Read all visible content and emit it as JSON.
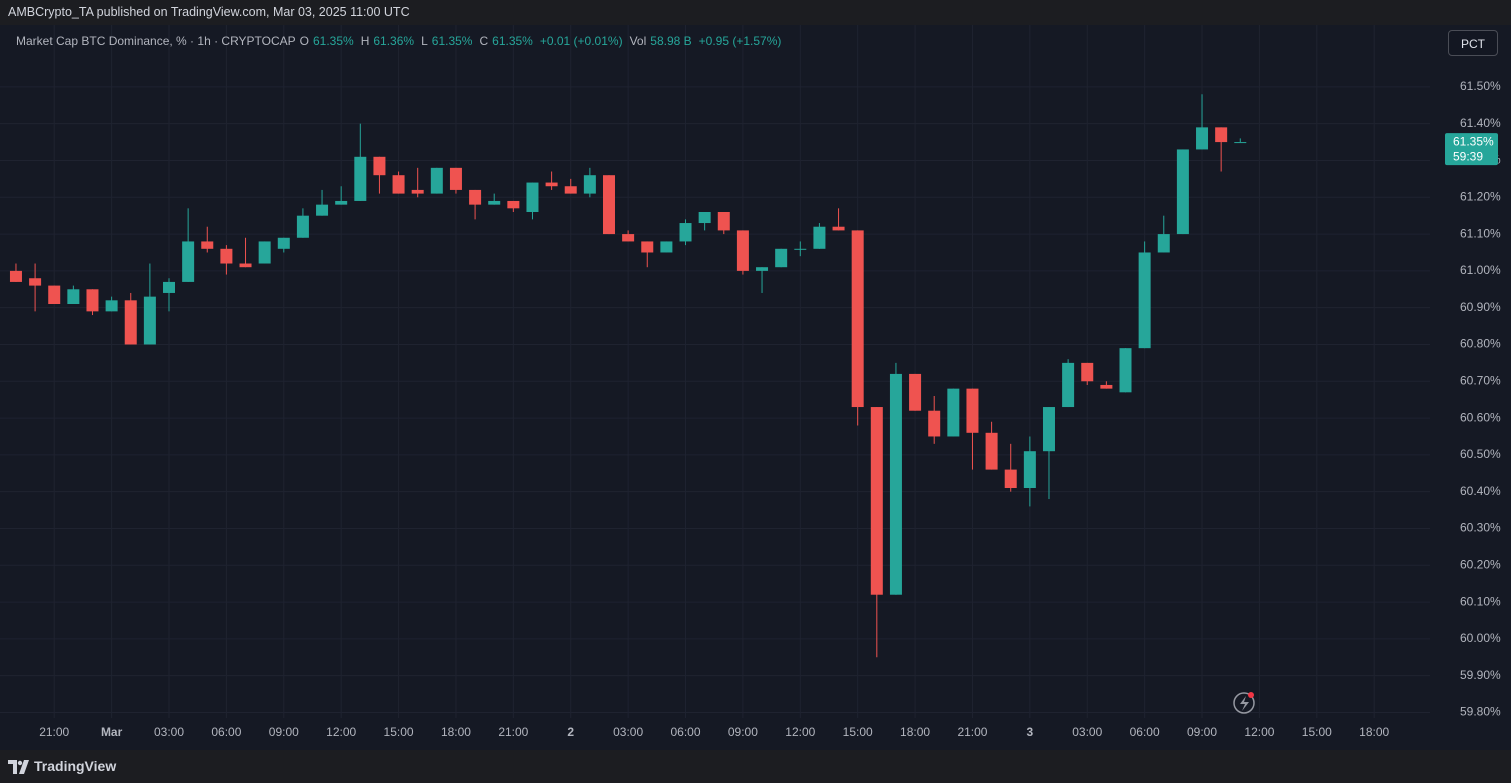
{
  "header": {
    "published": "AMBCrypto_TA published on TradingView.com, Mar 03, 2025 11:00 UTC",
    "symbol": "Market Cap BTC Dominance, % · 1h · CRYPTOCAP",
    "ohlc": [
      {
        "key": "O",
        "value": "61.35%"
      },
      {
        "key": "H",
        "value": "61.36%"
      },
      {
        "key": "L",
        "value": "61.35%"
      },
      {
        "key": "C",
        "value": "61.35%"
      }
    ],
    "change": "+0.01 (+0.01%)",
    "volume_key": "Vol",
    "volume": "58.98 B",
    "volume_change": "+0.95 (+1.57%)"
  },
  "scale_button": "PCT",
  "price_tag": {
    "price": "61.35%",
    "countdown": "59:39"
  },
  "footer": {
    "brand": "TradingView"
  },
  "chart_data": {
    "type": "candlestick",
    "categories": [
      null,
      null,
      "21:00",
      null,
      null,
      "Mar",
      null,
      null,
      "03:00",
      null,
      null,
      "06:00",
      null,
      null,
      "09:00",
      null,
      null,
      "12:00",
      null,
      null,
      "15:00",
      null,
      null,
      "18:00",
      null,
      null,
      "21:00",
      null,
      null,
      "2",
      null,
      null,
      "03:00",
      null,
      null,
      "06:00",
      null,
      null,
      "09:00",
      null,
      null,
      "12:00",
      null,
      null,
      "15:00",
      null,
      null,
      "18:00",
      null,
      null,
      "21:00",
      null,
      null,
      "3",
      null,
      null,
      "03:00",
      null,
      null,
      "06:00",
      null,
      null,
      "09:00",
      null,
      null,
      "12:00",
      null,
      null,
      "15:00",
      null,
      null,
      "18:00"
    ],
    "open": [
      61.0,
      60.98,
      60.96,
      60.91,
      60.95,
      60.89,
      60.92,
      60.8,
      60.94,
      60.97,
      61.08,
      61.06,
      61.02,
      61.02,
      61.06,
      61.09,
      61.15,
      61.18,
      61.19,
      61.31,
      61.26,
      61.22,
      61.21,
      61.28,
      61.22,
      61.18,
      61.19,
      61.16,
      61.24,
      61.23,
      61.21,
      61.26,
      61.1,
      61.08,
      61.05,
      61.08,
      61.13,
      61.16,
      61.11,
      61.0,
      61.01,
      61.06,
      61.06,
      61.12,
      61.11,
      60.63,
      60.12,
      60.72,
      60.62,
      60.55,
      60.68,
      60.56,
      60.46,
      60.41,
      60.51,
      60.63,
      60.75,
      60.69,
      60.67,
      60.79,
      61.05,
      61.1,
      61.33,
      61.39,
      61.35,
      null,
      null,
      null,
      null,
      null,
      null,
      null
    ],
    "high": [
      61.02,
      61.02,
      60.96,
      60.96,
      60.95,
      60.93,
      60.94,
      61.02,
      60.98,
      61.17,
      61.12,
      61.07,
      61.09,
      61.08,
      61.09,
      61.17,
      61.22,
      61.23,
      61.4,
      61.31,
      61.27,
      61.28,
      61.28,
      61.28,
      61.22,
      61.21,
      61.19,
      61.24,
      61.27,
      61.25,
      61.28,
      61.26,
      61.11,
      61.08,
      61.08,
      61.14,
      61.16,
      61.16,
      61.11,
      61.01,
      61.06,
      61.08,
      61.13,
      61.17,
      61.11,
      60.63,
      60.75,
      60.72,
      60.66,
      60.68,
      60.68,
      60.59,
      60.53,
      60.55,
      60.63,
      60.76,
      60.75,
      60.7,
      60.79,
      61.08,
      61.15,
      61.33,
      61.48,
      61.39,
      61.36,
      null,
      null,
      null,
      null,
      null,
      null,
      null
    ],
    "low": [
      60.97,
      60.89,
      60.91,
      60.91,
      60.88,
      60.89,
      60.8,
      60.8,
      60.89,
      60.97,
      61.05,
      60.99,
      61.01,
      61.02,
      61.05,
      61.09,
      61.15,
      61.18,
      61.19,
      61.21,
      61.21,
      61.2,
      61.21,
      61.21,
      61.14,
      61.18,
      61.16,
      61.14,
      61.22,
      61.21,
      61.2,
      61.1,
      61.08,
      61.01,
      61.05,
      61.07,
      61.11,
      61.1,
      60.99,
      60.94,
      61.01,
      61.04,
      61.06,
      61.11,
      60.58,
      59.95,
      60.12,
      60.62,
      60.53,
      60.55,
      60.46,
      60.46,
      60.4,
      60.36,
      60.38,
      60.63,
      60.69,
      60.68,
      60.67,
      60.79,
      61.05,
      61.1,
      61.33,
      61.27,
      61.35,
      null,
      null,
      null,
      null,
      null,
      null,
      null
    ],
    "close": [
      60.97,
      60.96,
      60.91,
      60.95,
      60.89,
      60.92,
      60.8,
      60.93,
      60.97,
      61.08,
      61.06,
      61.02,
      61.01,
      61.08,
      61.09,
      61.15,
      61.18,
      61.19,
      61.31,
      61.26,
      61.21,
      61.21,
      61.28,
      61.22,
      61.18,
      61.19,
      61.17,
      61.24,
      61.23,
      61.21,
      61.26,
      61.1,
      61.08,
      61.05,
      61.08,
      61.13,
      61.16,
      61.11,
      61.0,
      61.01,
      61.06,
      61.06,
      61.12,
      61.11,
      60.63,
      60.12,
      60.72,
      60.62,
      60.55,
      60.68,
      60.56,
      60.46,
      60.41,
      60.51,
      60.63,
      60.75,
      60.7,
      60.68,
      60.79,
      61.05,
      61.1,
      61.33,
      61.39,
      61.35,
      61.35,
      null,
      null,
      null,
      null,
      null,
      null,
      null
    ],
    "up_color": "#26a69a",
    "down_color": "#ef5350",
    "ylim": [
      59.785,
      61.66
    ],
    "yticks": [
      {
        "value": 61.5,
        "label": "61.50%"
      },
      {
        "value": 61.4,
        "label": "61.40%"
      },
      {
        "value": 61.3,
        "label": "61.30%"
      },
      {
        "value": 61.2,
        "label": "61.20%"
      },
      {
        "value": 61.1,
        "label": "61.10%"
      },
      {
        "value": 61.0,
        "label": "61.00%"
      },
      {
        "value": 60.9,
        "label": "60.90%"
      },
      {
        "value": 60.8,
        "label": "60.80%"
      },
      {
        "value": 60.7,
        "label": "60.70%"
      },
      {
        "value": 60.6,
        "label": "60.60%"
      },
      {
        "value": 60.5,
        "label": "60.50%"
      },
      {
        "value": 60.4,
        "label": "60.40%"
      },
      {
        "value": 60.3,
        "label": "60.30%"
      },
      {
        "value": 60.2,
        "label": "60.20%"
      },
      {
        "value": 60.1,
        "label": "60.10%"
      },
      {
        "value": 60.0,
        "label": "60.00%"
      },
      {
        "value": 59.9,
        "label": "59.90%"
      },
      {
        "value": 59.8,
        "label": "59.80%"
      }
    ],
    "grid": true
  }
}
